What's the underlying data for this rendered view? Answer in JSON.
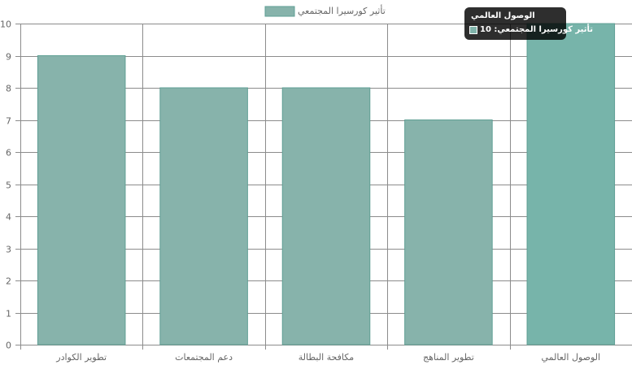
{
  "chart_data": {
    "type": "bar",
    "categories": [
      "تطوير الكوادر",
      "دعم المجتمعات",
      "مكافحة البطالة",
      "تطوير المناهج",
      "الوصول العالمي"
    ],
    "series": [
      {
        "name": "تأثير كورسيرا المجتمعي",
        "values": [
          9,
          8,
          8,
          7,
          10
        ]
      }
    ],
    "ylim": [
      0,
      10
    ],
    "yticks": [
      0,
      1,
      2,
      3,
      4,
      5,
      6,
      7,
      8,
      9,
      10
    ],
    "grid": true,
    "legend_position": "top",
    "colors": {
      "bar_fill": "#87b3ab",
      "bar_fill_hover": "#77b4aa",
      "bar_border": "#5f9f94",
      "grid": "#8c8c8c"
    }
  },
  "tooltip": {
    "title": "الوصول العالمي",
    "label": "تأثير كورسيرا المجتمعي: 10"
  }
}
